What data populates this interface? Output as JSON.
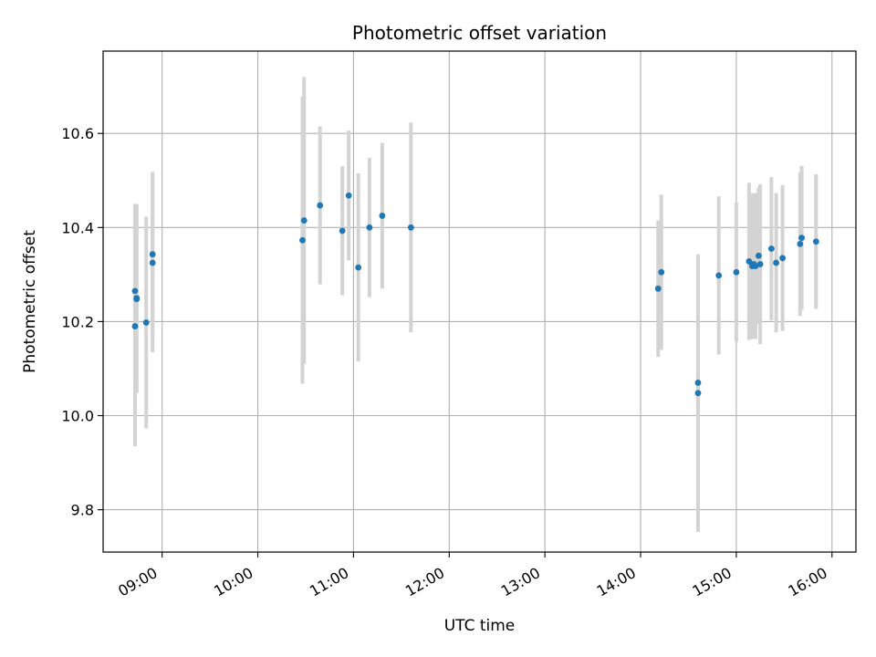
{
  "chart_data": {
    "type": "scatter",
    "title": "Photometric offset variation",
    "xlabel": "UTC time",
    "ylabel": "Photometric offset",
    "grid": true,
    "xlim": [
      "08:23",
      "16:15"
    ],
    "ylim": [
      9.71,
      10.775
    ],
    "x_ticks": [
      "09:00",
      "10:00",
      "11:00",
      "12:00",
      "13:00",
      "14:00",
      "15:00",
      "16:00"
    ],
    "y_ticks": [
      "9.8",
      "10.0",
      "10.2",
      "10.4",
      "10.6"
    ],
    "colors": {
      "point": "#1f77b4",
      "errorbar": "#d3d3d3",
      "grid": "#b0b0b0"
    },
    "series": [
      {
        "points": [
          {
            "x": "08:43",
            "y": 10.19,
            "yerr": 0.255
          },
          {
            "x": "08:43",
            "y": 10.265,
            "yerr": 0.185
          },
          {
            "x": "08:44",
            "y": 10.25,
            "yerr": 0.2
          },
          {
            "x": "08:44",
            "y": 10.248,
            "yerr": 0.2
          },
          {
            "x": "08:50",
            "y": 10.198,
            "yerr": 0.225
          },
          {
            "x": "08:54",
            "y": 10.343,
            "yerr": 0.175
          },
          {
            "x": "08:54",
            "y": 10.325,
            "yerr": 0.19
          },
          {
            "x": "10:28",
            "y": 10.373,
            "yerr": 0.305
          },
          {
            "x": "10:29",
            "y": 10.415,
            "yerr": 0.305
          },
          {
            "x": "10:39",
            "y": 10.447,
            "yerr": 0.168
          },
          {
            "x": "10:53",
            "y": 10.393,
            "yerr": 0.137
          },
          {
            "x": "10:57",
            "y": 10.468,
            "yerr": 0.138
          },
          {
            "x": "11:03",
            "y": 10.315,
            "yerr": 0.2
          },
          {
            "x": "11:10",
            "y": 10.4,
            "yerr": 0.148
          },
          {
            "x": "11:18",
            "y": 10.425,
            "yerr": 0.155
          },
          {
            "x": "11:36",
            "y": 10.4,
            "yerr": 0.223
          },
          {
            "x": "14:11",
            "y": 10.27,
            "yerr": 0.145
          },
          {
            "x": "14:13",
            "y": 10.305,
            "yerr": 0.165
          },
          {
            "x": "14:36",
            "y": 10.048,
            "yerr": 0.295
          },
          {
            "x": "14:36",
            "y": 10.07,
            "yerr": 0.27
          },
          {
            "x": "14:49",
            "y": 10.298,
            "yerr": 0.168
          },
          {
            "x": "15:00",
            "y": 10.305,
            "yerr": 0.148
          },
          {
            "x": "15:08",
            "y": 10.328,
            "yerr": 0.167
          },
          {
            "x": "15:10",
            "y": 10.318,
            "yerr": 0.155
          },
          {
            "x": "15:11",
            "y": 10.322,
            "yerr": 0.15
          },
          {
            "x": "15:12",
            "y": 10.318,
            "yerr": 0.155
          },
          {
            "x": "15:14",
            "y": 10.34,
            "yerr": 0.145
          },
          {
            "x": "15:15",
            "y": 10.322,
            "yerr": 0.17
          },
          {
            "x": "15:22",
            "y": 10.355,
            "yerr": 0.152
          },
          {
            "x": "15:25",
            "y": 10.325,
            "yerr": 0.148
          },
          {
            "x": "15:29",
            "y": 10.335,
            "yerr": 0.155
          },
          {
            "x": "15:40",
            "y": 10.365,
            "yerr": 0.153
          },
          {
            "x": "15:41",
            "y": 10.378,
            "yerr": 0.153
          },
          {
            "x": "15:50",
            "y": 10.37,
            "yerr": 0.143
          }
        ]
      }
    ]
  }
}
